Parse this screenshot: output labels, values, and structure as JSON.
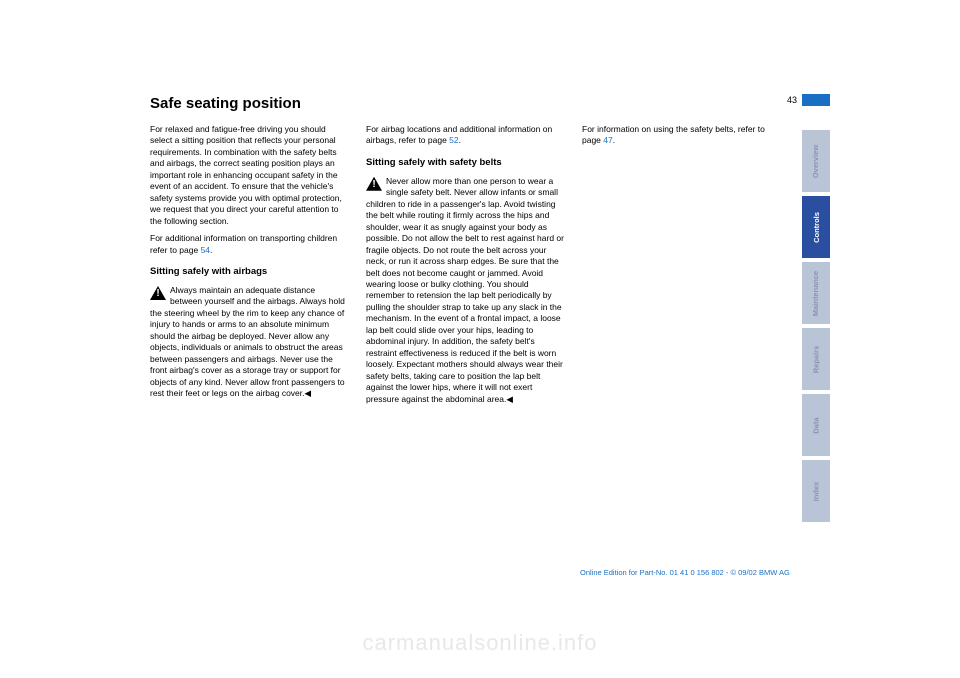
{
  "page_number": "43",
  "title": "Safe seating position",
  "col1": {
    "para1": "For relaxed and fatigue-free driving you should select a sitting position that reflects your personal requirements. In combination with the safety belts and airbags, the correct seating position plays an important role in enhancing occupant safety in the event of an accident. To ensure that the vehicle's safety systems provide you with optimal protection, we request that you direct your careful attention to the following section.",
    "para2a": "For additional information on transporting children refer to page ",
    "link2": "54",
    "para2b": ".",
    "subhead": "Sitting safely with airbags",
    "warn": "Always maintain an adequate distance between yourself and the airbags. Always hold the steering wheel by the rim to keep any chance of injury to hands or arms to an absolute minimum should the airbag be deployed. Never allow any objects, individuals or animals to obstruct the areas between passengers and airbags. Never use the front airbag's cover as a storage tray or support for objects of any kind. Never allow front passengers to rest their feet or legs on the airbag cover.◀"
  },
  "col2": {
    "para1a": "For airbag locations and additional information on airbags, refer to page ",
    "link1": "52",
    "para1b": ".",
    "subhead": "Sitting safely with safety belts",
    "warn": "Never allow more than one person to wear a single safety belt. Never allow infants or small children to ride in a passenger's lap. Avoid twisting the belt while routing it firmly across the hips and shoulder, wear it as snugly against your body as possible. Do not allow the belt to rest against hard or fragile objects. Do not route the belt across your neck, or run it across sharp edges. Be sure that the belt does not become caught or jammed. Avoid wearing loose or bulky clothing. You should remember to retension the lap belt periodically by pulling the shoulder strap to take up any slack in the mechanism. In the event of a frontal impact, a loose lap belt could slide over your hips, leading to abdominal injury. In addition, the safety belt's restraint effectiveness is reduced if the belt is worn loosely. Expectant mothers should always wear their safety belts, taking care to position the lap belt against the lower hips, where it will not exert pressure against the abdominal area.◀"
  },
  "col3": {
    "para1a": "For information on using the safety belts, refer to page ",
    "link1": "47",
    "para1b": "."
  },
  "tabs": [
    "Overview",
    "Controls",
    "Maintenance",
    "Repairs",
    "Data",
    "Index"
  ],
  "active_tab_index": 1,
  "footer": "Online Edition for Part-No. 01 41 0 156 802 - © 09/02 BMW AG",
  "watermark": "carmanualsonline.info",
  "colors": {
    "link": "#1a6fc4",
    "tab_active": "#2a4fa0",
    "tab_inactive": "#b9c4d6"
  }
}
